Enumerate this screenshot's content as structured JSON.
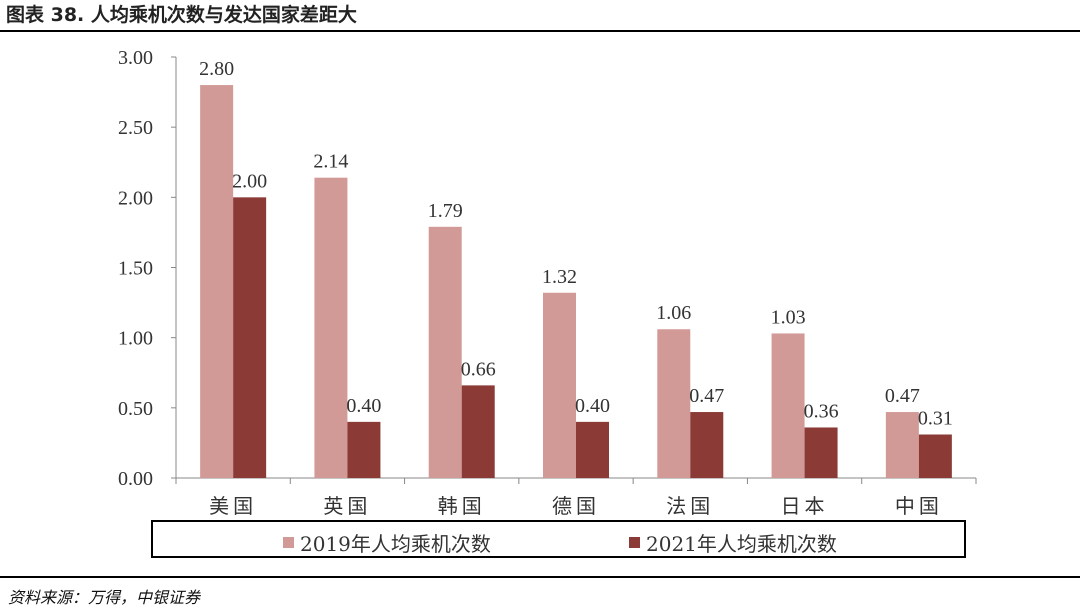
{
  "figure": {
    "title": "图表 38. 人均乘机次数与发达国家差距大",
    "source": "资料来源：万得，中银证券"
  },
  "colors": {
    "series_2019": "#d29a96",
    "series_2021": "#8b3a36",
    "axis": "#888888"
  },
  "chart_data": {
    "type": "bar",
    "categories": [
      "美国",
      "英国",
      "韩国",
      "德国",
      "法国",
      "日本",
      "中国"
    ],
    "series": [
      {
        "name": "2019年人均乘机次数",
        "values": [
          2.8,
          2.14,
          1.79,
          1.32,
          1.06,
          1.03,
          0.47
        ],
        "labels": [
          "2.80",
          "2.14",
          "1.79",
          "1.32",
          "1.06",
          "1.03",
          "0.47"
        ]
      },
      {
        "name": "2021年人均乘机次数",
        "values": [
          2.0,
          0.4,
          0.66,
          0.4,
          0.47,
          0.36,
          0.31
        ],
        "labels": [
          "2.00",
          "0.40",
          "0.66",
          "0.40",
          "0.47",
          "0.36",
          "0.31"
        ]
      }
    ],
    "ylim": [
      0,
      3
    ],
    "yticks": [
      "0.00",
      "0.50",
      "1.00",
      "1.50",
      "2.00",
      "2.50",
      "3.00"
    ],
    "grid": false,
    "legend_position": "bottom"
  }
}
